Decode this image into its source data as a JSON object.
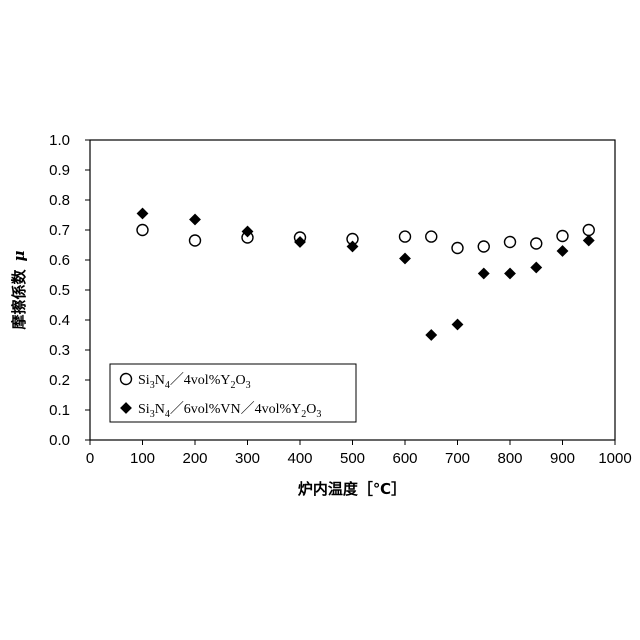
{
  "chart_data": {
    "type": "scatter",
    "xlabel": "炉内温度［℃］",
    "ylabel": "摩擦係数",
    "ylabel_symbol": "μ",
    "xlim": [
      0,
      1000
    ],
    "ylim": [
      0.0,
      1.0
    ],
    "x_ticks": [
      "0",
      "100",
      "200",
      "300",
      "400",
      "500",
      "600",
      "700",
      "800",
      "900",
      "1000"
    ],
    "y_ticks": [
      "0.0",
      "0.1",
      "0.2",
      "0.3",
      "0.4",
      "0.5",
      "0.6",
      "0.7",
      "0.8",
      "0.9",
      "1.0"
    ],
    "grid": false,
    "legend_position": "bottom-left",
    "series": [
      {
        "name": "Si3N4／4vol%Y2O3",
        "marker": "open-circle",
        "color": "#000000",
        "points": [
          {
            "x": 100,
            "y": 0.7
          },
          {
            "x": 200,
            "y": 0.665
          },
          {
            "x": 300,
            "y": 0.675
          },
          {
            "x": 400,
            "y": 0.675
          },
          {
            "x": 500,
            "y": 0.67
          },
          {
            "x": 600,
            "y": 0.678
          },
          {
            "x": 650,
            "y": 0.678
          },
          {
            "x": 700,
            "y": 0.64
          },
          {
            "x": 750,
            "y": 0.645
          },
          {
            "x": 800,
            "y": 0.66
          },
          {
            "x": 850,
            "y": 0.655
          },
          {
            "x": 900,
            "y": 0.68
          },
          {
            "x": 950,
            "y": 0.7
          }
        ]
      },
      {
        "name": "Si3N4／6vol%VN／4vol%Y2O3",
        "marker": "filled-diamond",
        "color": "#000000",
        "points": [
          {
            "x": 100,
            "y": 0.755
          },
          {
            "x": 200,
            "y": 0.735
          },
          {
            "x": 300,
            "y": 0.695
          },
          {
            "x": 400,
            "y": 0.66
          },
          {
            "x": 500,
            "y": 0.645
          },
          {
            "x": 600,
            "y": 0.605
          },
          {
            "x": 650,
            "y": 0.35
          },
          {
            "x": 700,
            "y": 0.385
          },
          {
            "x": 750,
            "y": 0.555
          },
          {
            "x": 800,
            "y": 0.555
          },
          {
            "x": 850,
            "y": 0.575
          },
          {
            "x": 900,
            "y": 0.63
          },
          {
            "x": 950,
            "y": 0.665
          }
        ]
      }
    ],
    "legend": {
      "entries": [
        {
          "marker": "open-circle",
          "parts": [
            {
              "t": "Si"
            },
            {
              "t": "3",
              "sub": true
            },
            {
              "t": "N"
            },
            {
              "t": "4",
              "sub": true
            },
            {
              "t": "／4vol%Y"
            },
            {
              "t": "2",
              "sub": true
            },
            {
              "t": "O"
            },
            {
              "t": "3",
              "sub": true
            }
          ]
        },
        {
          "marker": "filled-diamond",
          "parts": [
            {
              "t": "Si"
            },
            {
              "t": "3",
              "sub": true
            },
            {
              "t": "N"
            },
            {
              "t": "4",
              "sub": true
            },
            {
              "t": "／6vol%VN／4vol%Y"
            },
            {
              "t": "2",
              "sub": true
            },
            {
              "t": "O"
            },
            {
              "t": "3",
              "sub": true
            }
          ]
        }
      ]
    }
  }
}
